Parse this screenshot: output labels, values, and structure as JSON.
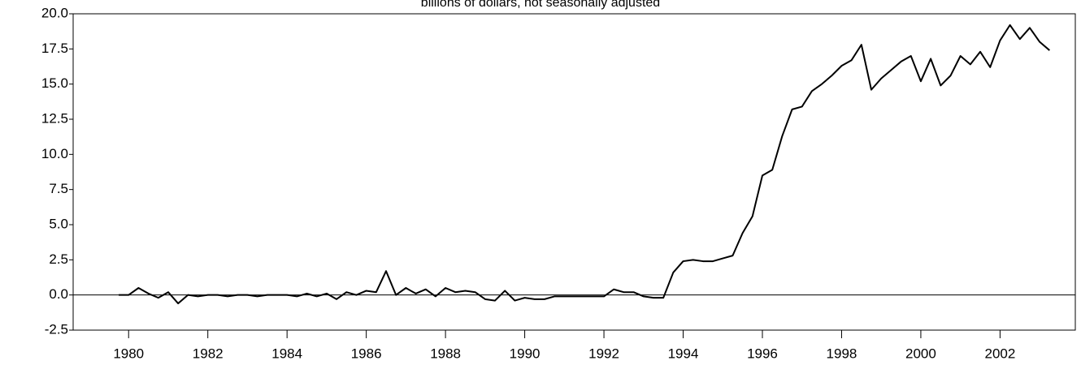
{
  "chart_data": {
    "type": "line",
    "subtitle": "billions of dollars, not seasonally adjusted",
    "color": "#000000",
    "x": [
      1979.75,
      1980,
      1980.25,
      1980.5,
      1980.75,
      1981,
      1981.25,
      1981.5,
      1981.75,
      1982,
      1982.25,
      1982.5,
      1982.75,
      1983,
      1983.25,
      1983.5,
      1983.75,
      1984,
      1984.25,
      1984.5,
      1984.75,
      1985,
      1985.25,
      1985.5,
      1985.75,
      1986,
      1986.25,
      1986.5,
      1986.75,
      1987,
      1987.25,
      1987.5,
      1987.75,
      1988,
      1988.25,
      1988.5,
      1988.75,
      1989,
      1989.25,
      1989.5,
      1989.75,
      1990,
      1990.25,
      1990.5,
      1990.75,
      1991,
      1991.25,
      1991.5,
      1991.75,
      1992,
      1992.25,
      1992.5,
      1992.75,
      1993,
      1993.25,
      1993.5,
      1993.75,
      1994,
      1994.25,
      1994.5,
      1994.75,
      1995,
      1995.25,
      1995.5,
      1995.75,
      1996,
      1996.25,
      1996.5,
      1996.75,
      1997,
      1997.25,
      1997.5,
      1997.75,
      1998,
      1998.25,
      1998.5,
      1998.75,
      1999,
      1999.25,
      1999.5,
      1999.75,
      2000,
      2000.25,
      2000.5,
      2000.75,
      2001,
      2001.25,
      2001.5,
      2001.75,
      2002,
      2002.25,
      2002.5,
      2002.75,
      2003,
      2003.25
    ],
    "values": [
      0.0,
      0.0,
      0.5,
      0.1,
      -0.2,
      0.2,
      -0.6,
      0.0,
      -0.1,
      0.0,
      0.0,
      -0.1,
      0.0,
      0.0,
      -0.1,
      0.0,
      0.0,
      0.0,
      -0.1,
      0.1,
      -0.1,
      0.1,
      -0.3,
      0.2,
      0.0,
      0.3,
      0.2,
      1.7,
      0.0,
      0.5,
      0.1,
      0.4,
      -0.1,
      0.5,
      0.2,
      0.3,
      0.2,
      -0.3,
      -0.4,
      0.3,
      -0.4,
      -0.2,
      -0.3,
      -0.3,
      -0.1,
      -0.1,
      -0.1,
      -0.1,
      -0.1,
      -0.1,
      0.4,
      0.2,
      0.2,
      -0.1,
      -0.2,
      -0.2,
      1.6,
      2.4,
      2.5,
      2.4,
      2.4,
      2.6,
      2.8,
      4.4,
      5.6,
      8.5,
      8.9,
      11.3,
      13.2,
      13.4,
      14.5,
      15.0,
      15.6,
      16.3,
      16.7,
      17.8,
      14.6,
      15.4,
      16.0,
      16.6,
      17.0,
      15.2,
      16.8,
      14.9,
      15.6,
      17.0,
      16.4,
      17.3,
      16.2,
      18.1,
      19.2,
      18.2,
      19.0,
      18.0,
      17.4
    ],
    "xlim": [
      1978.6,
      2003.9
    ],
    "xticks": [
      1980,
      1982,
      1984,
      1986,
      1988,
      1990,
      1992,
      1994,
      1996,
      1998,
      2000,
      2002
    ],
    "ylim": [
      -2.5,
      20
    ],
    "yticks": [
      {
        "value": -2.5,
        "label": "-2.5"
      },
      {
        "value": 0,
        "label": "0.0"
      },
      {
        "value": 2.5,
        "label": "2.5"
      },
      {
        "value": 5,
        "label": "5.0"
      },
      {
        "value": 7.5,
        "label": "7.5"
      },
      {
        "value": 10,
        "label": "10.0"
      },
      {
        "value": 12.5,
        "label": "12.5"
      },
      {
        "value": 15,
        "label": "15.0"
      },
      {
        "value": 17.5,
        "label": "17.5"
      },
      {
        "value": 20,
        "label": "20.0"
      }
    ],
    "zero_line": true
  }
}
